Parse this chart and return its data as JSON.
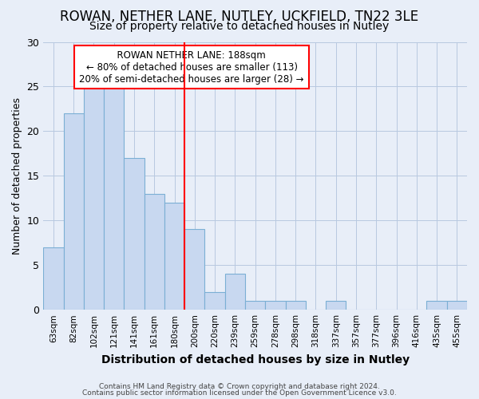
{
  "title": "ROWAN, NETHER LANE, NUTLEY, UCKFIELD, TN22 3LE",
  "subtitle": "Size of property relative to detached houses in Nutley",
  "xlabel": "Distribution of detached houses by size in Nutley",
  "ylabel": "Number of detached properties",
  "footnote1": "Contains HM Land Registry data © Crown copyright and database right 2024.",
  "footnote2": "Contains public sector information licensed under the Open Government Licence v3.0.",
  "categories": [
    "63sqm",
    "82sqm",
    "102sqm",
    "121sqm",
    "141sqm",
    "161sqm",
    "180sqm",
    "200sqm",
    "220sqm",
    "239sqm",
    "259sqm",
    "278sqm",
    "298sqm",
    "318sqm",
    "337sqm",
    "357sqm",
    "377sqm",
    "396sqm",
    "416sqm",
    "435sqm",
    "455sqm"
  ],
  "values": [
    7,
    22,
    25,
    25,
    17,
    13,
    12,
    9,
    2,
    4,
    1,
    1,
    1,
    0,
    1,
    0,
    0,
    0,
    0,
    1,
    1
  ],
  "bar_color": "#c8d8f0",
  "bar_edge_color": "#7bafd4",
  "vline_x": 7.0,
  "vline_color": "red",
  "annotation_title": "ROWAN NETHER LANE: 188sqm",
  "annotation_line1": "← 80% of detached houses are smaller (113)",
  "annotation_line2": "20% of semi-detached houses are larger (28) →",
  "ylim": [
    0,
    30
  ],
  "yticks": [
    0,
    5,
    10,
    15,
    20,
    25,
    30
  ],
  "background_color": "#e8eef8",
  "plot_bg_color": "#e8eef8",
  "title_fontsize": 12,
  "subtitle_fontsize": 10
}
